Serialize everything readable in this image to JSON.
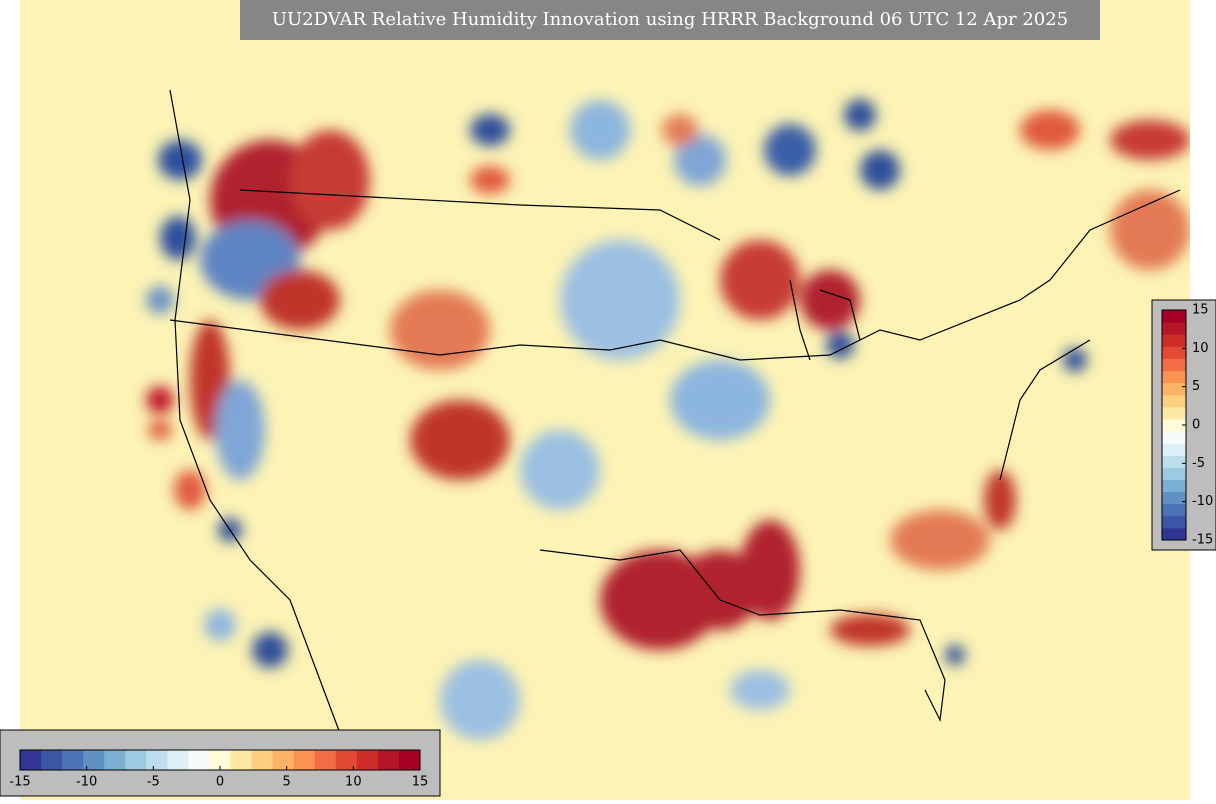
{
  "title": "UU2DVAR Relative Humidity Innovation using HRRR Background 06 UTC 12 Apr 2025",
  "colorbar_bottom": {
    "range": [
      -15,
      15
    ],
    "ticks": [
      -15,
      -10,
      -5,
      0,
      5,
      10,
      15
    ],
    "colors": [
      "#313695",
      "#3b56a5",
      "#4a74b4",
      "#5f91c3",
      "#7bb0d4",
      "#9ccae1",
      "#bddfed",
      "#ddf0f5",
      "#f7fbfb",
      "#fffbd9",
      "#fee8a6",
      "#fdd07f",
      "#fdb365",
      "#f99253",
      "#f26d44",
      "#e34a33",
      "#cf2d2a",
      "#b5162a",
      "#a50026"
    ]
  },
  "colorbar_right": {
    "range": [
      -15,
      15
    ],
    "ticks": [
      -15,
      -10,
      -5,
      0,
      5,
      10,
      15
    ],
    "colors": [
      "#313695",
      "#3b56a5",
      "#4a74b4",
      "#5f91c3",
      "#7bb0d4",
      "#9ccae1",
      "#bddfed",
      "#ddf0f5",
      "#f7fbfb",
      "#fffbd9",
      "#fee8a6",
      "#fdd07f",
      "#fdb365",
      "#f99253",
      "#f26d44",
      "#e34a33",
      "#cf2d2a",
      "#b5162a",
      "#a50026"
    ]
  }
}
